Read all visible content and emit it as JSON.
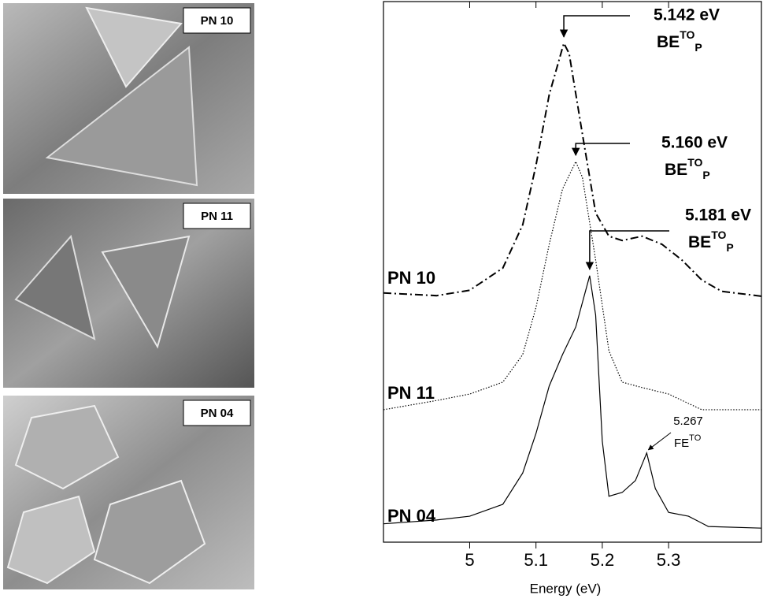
{
  "images": [
    {
      "label": "PN 10"
    },
    {
      "label": "PN 11"
    },
    {
      "label": "PN 04"
    }
  ],
  "chart_data": {
    "type": "line",
    "x_label": "Energy (eV)",
    "xlim": [
      4.87,
      5.44
    ],
    "xticks": [
      5.0,
      5.1,
      5.2,
      5.3
    ],
    "ylim": [
      0,
      100
    ],
    "series": [
      {
        "name": "PN 10",
        "color": "#000000",
        "dash": "dash-dot",
        "x": [
          4.87,
          4.95,
          5.0,
          5.05,
          5.08,
          5.1,
          5.12,
          5.142,
          5.15,
          5.17,
          5.19,
          5.21,
          5.23,
          5.26,
          5.29,
          5.32,
          5.35,
          5.38,
          5.44
        ],
        "values": [
          46.1,
          45.6,
          46.6,
          50.7,
          58.7,
          69.7,
          82.8,
          92.3,
          90.4,
          75.5,
          60.9,
          56.6,
          55.8,
          56.6,
          55.1,
          52.2,
          48.5,
          46.4,
          45.5
        ]
      },
      {
        "name": "PN 11",
        "color": "#000000",
        "dash": "dotted",
        "x": [
          4.87,
          4.95,
          5.0,
          5.05,
          5.08,
          5.1,
          5.12,
          5.14,
          5.16,
          5.17,
          5.19,
          5.21,
          5.23,
          5.26,
          5.3,
          5.35,
          5.44
        ],
        "values": [
          24.5,
          26.2,
          27.4,
          29.6,
          34.7,
          43.4,
          55.1,
          65.3,
          70.4,
          67.5,
          52.2,
          35.4,
          29.6,
          28.6,
          27.4,
          24.5,
          24.5
        ]
      },
      {
        "name": "PN 04",
        "color": "#000000",
        "dash": "solid",
        "x": [
          4.87,
          4.95,
          5.0,
          5.05,
          5.08,
          5.1,
          5.12,
          5.14,
          5.16,
          5.181,
          5.19,
          5.2,
          5.21,
          5.23,
          5.25,
          5.267,
          5.28,
          5.3,
          5.33,
          5.36,
          5.44
        ],
        "values": [
          3.4,
          4.1,
          4.8,
          7.0,
          12.8,
          20.1,
          28.9,
          34.7,
          39.8,
          49.3,
          42.0,
          18.7,
          8.5,
          9.2,
          11.4,
          16.5,
          9.9,
          5.5,
          4.8,
          2.9,
          2.6
        ]
      }
    ],
    "annotations": [
      {
        "text": "5.142 eV",
        "label": "BE",
        "sup": "TO",
        "sub": "P",
        "x": 5.142,
        "y": 92.3
      },
      {
        "text": "5.160 eV",
        "label": "BE",
        "sup": "TO",
        "sub": "P",
        "x": 5.16,
        "y": 70.4
      },
      {
        "text": "5.181 eV",
        "label": "BE",
        "sup": "TO",
        "sub": "P",
        "x": 5.181,
        "y": 49.3
      },
      {
        "text": "5.267",
        "label": "FE",
        "sup": "TO",
        "x": 5.267,
        "y": 16.5
      }
    ]
  }
}
